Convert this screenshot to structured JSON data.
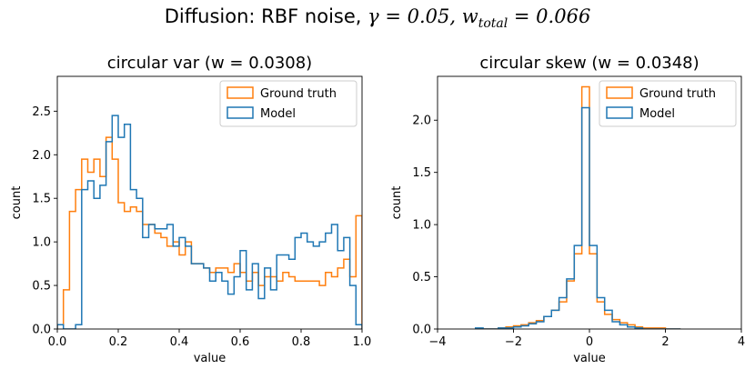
{
  "figure": {
    "suptitle_prefix": "Diffusion: RBF noise, ",
    "suptitle_gamma": "γ = 0.05, ",
    "suptitle_w": "w",
    "suptitle_sub": "total",
    "suptitle_wval": " = 0.066"
  },
  "colors": {
    "ground_truth": "#ff7f0e",
    "model": "#1f77b4"
  },
  "chart_data": [
    {
      "type": "histogram-step",
      "title": "circular var (w = 0.0308)",
      "xlabel": "value",
      "ylabel": "count",
      "xlim": [
        0.0,
        1.0
      ],
      "ylim": [
        0.0,
        2.9
      ],
      "xticks": [
        "0.0",
        "0.2",
        "0.4",
        "0.6",
        "0.8",
        "1.0"
      ],
      "xtick_values": [
        0.0,
        0.2,
        0.4,
        0.6,
        0.8,
        1.0
      ],
      "yticks": [
        "0.0",
        "0.5",
        "1.0",
        "1.5",
        "2.0",
        "2.5"
      ],
      "ytick_values": [
        0.0,
        0.5,
        1.0,
        1.5,
        2.0,
        2.5
      ],
      "legend_position": "top-right",
      "bin_edges_range": [
        0.0,
        1.0
      ],
      "n_bins": 50,
      "series": [
        {
          "name": "Ground truth",
          "values": [
            0.05,
            0.45,
            1.35,
            1.6,
            1.95,
            1.8,
            1.95,
            1.75,
            2.2,
            1.95,
            1.45,
            1.35,
            1.4,
            1.35,
            1.2,
            1.2,
            1.1,
            1.05,
            0.95,
            1.0,
            0.85,
            1.0,
            0.75,
            0.75,
            0.7,
            0.65,
            0.7,
            0.7,
            0.65,
            0.75,
            0.65,
            0.55,
            0.65,
            0.5,
            0.6,
            0.6,
            0.55,
            0.65,
            0.6,
            0.55,
            0.55,
            0.55,
            0.55,
            0.5,
            0.65,
            0.6,
            0.7,
            0.8,
            0.6,
            1.3
          ]
        },
        {
          "name": "Model",
          "values": [
            0.05,
            0.0,
            0.0,
            0.05,
            1.6,
            1.7,
            1.5,
            1.65,
            2.15,
            2.45,
            2.2,
            2.35,
            1.6,
            1.5,
            1.05,
            1.2,
            1.15,
            1.15,
            1.2,
            0.95,
            1.05,
            0.95,
            0.75,
            0.75,
            0.7,
            0.55,
            0.65,
            0.55,
            0.4,
            0.6,
            0.9,
            0.45,
            0.75,
            0.35,
            0.7,
            0.45,
            0.85,
            0.85,
            0.8,
            1.05,
            1.1,
            1.0,
            0.95,
            1.0,
            1.1,
            1.2,
            0.9,
            1.05,
            0.5,
            0.05
          ]
        }
      ]
    },
    {
      "type": "histogram-step",
      "title": "circular skew (w = 0.0348)",
      "xlabel": "value",
      "ylabel": "count",
      "xlim": [
        -4,
        4
      ],
      "ylim": [
        0.0,
        2.42
      ],
      "xticks": [
        "−4",
        "−2",
        "0",
        "2",
        "4"
      ],
      "xtick_values": [
        -4,
        -2,
        0,
        2,
        4
      ],
      "yticks": [
        "0.0",
        "0.5",
        "1.0",
        "1.5",
        "2.0"
      ],
      "ytick_values": [
        0.0,
        0.5,
        1.0,
        1.5,
        2.0
      ],
      "legend_position": "top-right",
      "bin_edges": [
        -3.0,
        -2.8,
        -2.6,
        -2.4,
        -2.2,
        -2.0,
        -1.8,
        -1.6,
        -1.4,
        -1.2,
        -1.0,
        -0.8,
        -0.6,
        -0.4,
        -0.2,
        0.0,
        0.2,
        0.4,
        0.6,
        0.8,
        1.0,
        1.2,
        1.4,
        1.6,
        1.8,
        2.0,
        2.2,
        2.4
      ],
      "series": [
        {
          "name": "Ground truth",
          "values": [
            0.0,
            0.0,
            0.0,
            0.01,
            0.02,
            0.03,
            0.04,
            0.06,
            0.08,
            0.12,
            0.18,
            0.26,
            0.46,
            0.72,
            2.32,
            0.72,
            0.26,
            0.14,
            0.09,
            0.06,
            0.04,
            0.02,
            0.01,
            0.01,
            0.01,
            0.0,
            0.0
          ]
        },
        {
          "name": "Model",
          "values": [
            0.01,
            0.0,
            0.0,
            0.01,
            0.01,
            0.02,
            0.03,
            0.05,
            0.07,
            0.12,
            0.18,
            0.3,
            0.48,
            0.8,
            2.12,
            0.8,
            0.3,
            0.18,
            0.07,
            0.04,
            0.02,
            0.01,
            0.0,
            0.0,
            0.0,
            0.0,
            0.0
          ]
        }
      ]
    }
  ]
}
